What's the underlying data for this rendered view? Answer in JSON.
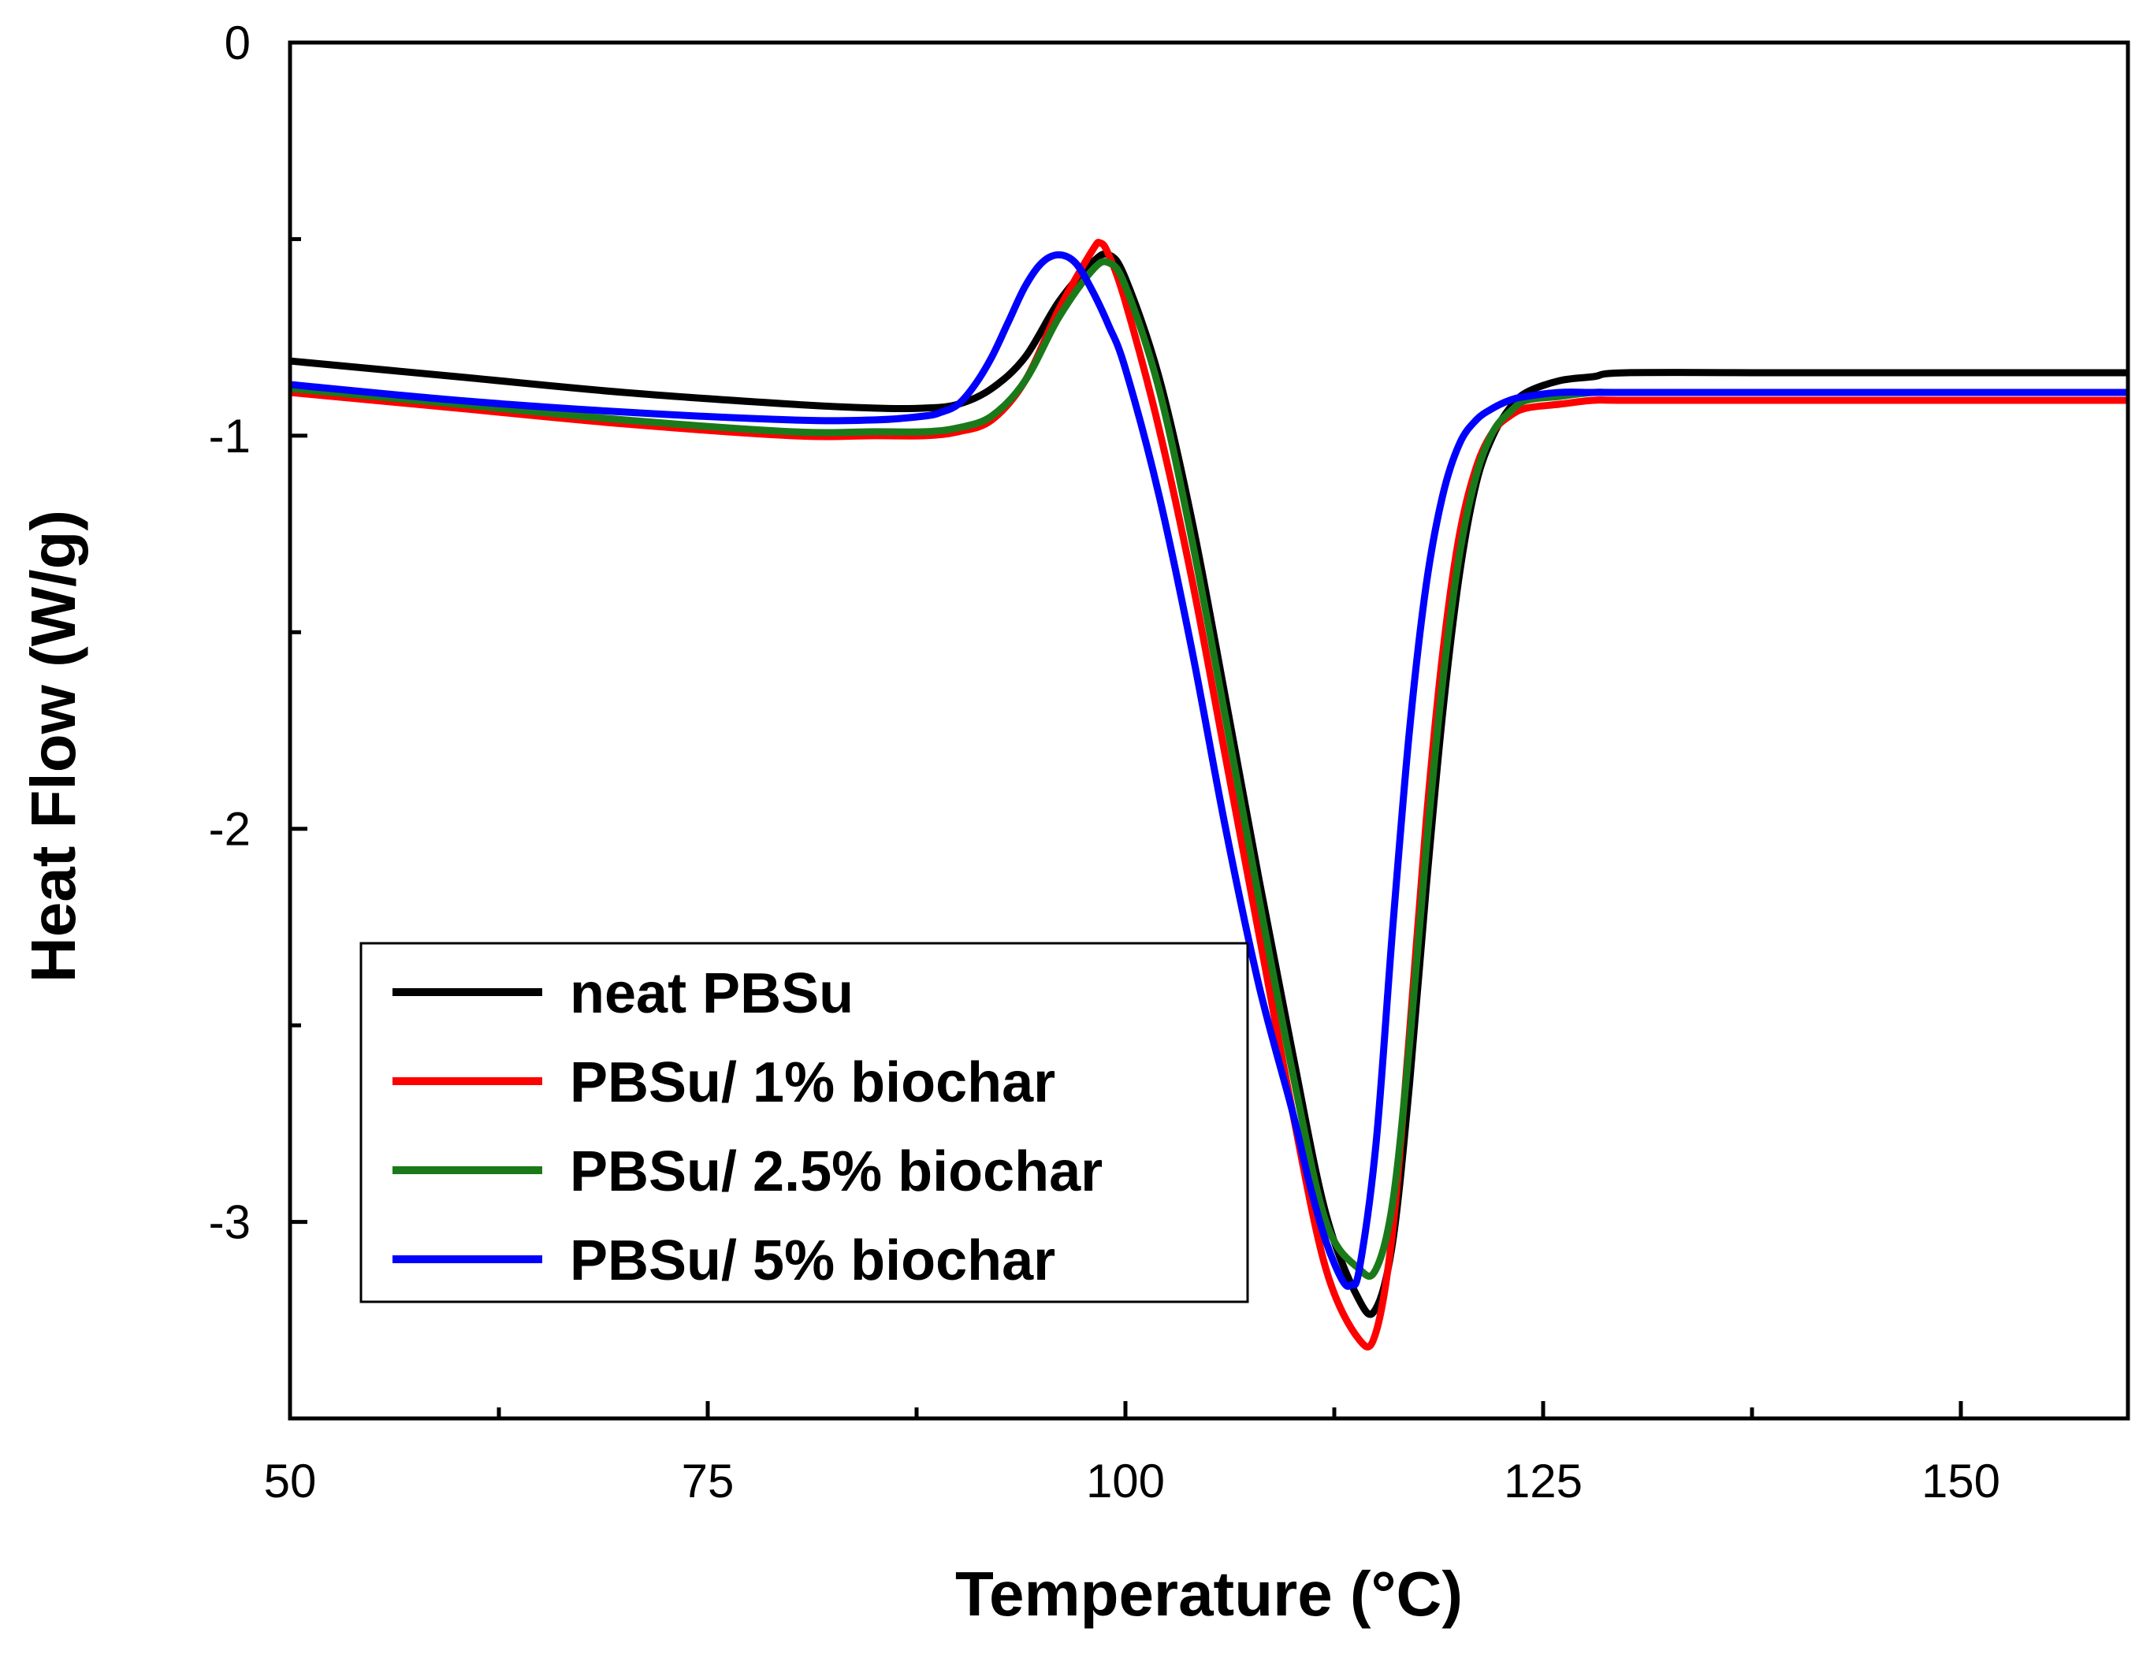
{
  "chart_data": {
    "type": "line",
    "title": "",
    "xlabel": "Temperature (°C)",
    "ylabel": "Heat Flow (W/g)",
    "xlim": [
      50,
      160
    ],
    "ylim": [
      -3.5,
      0
    ],
    "xticks": [
      50,
      75,
      100,
      125,
      150
    ],
    "xtick_labels": [
      "50",
      "75",
      "100",
      "125",
      "150"
    ],
    "yticks": [
      0,
      -1,
      -2,
      -3
    ],
    "ytick_labels": [
      "0",
      "-1",
      "-2",
      "-3"
    ],
    "grid": false,
    "legend_position": "bottom-left",
    "series": [
      {
        "name": "neat PBSu",
        "color": "#000000",
        "x": [
          50,
          60,
          70,
          80,
          85,
          88,
          90,
          92,
          94,
          96,
          98,
          99,
          100,
          102,
          104,
          106,
          108,
          110,
          112,
          114,
          115,
          116,
          117,
          118,
          119,
          120,
          121,
          122,
          123,
          124,
          126,
          128,
          130,
          140,
          150,
          160
        ],
        "y": [
          -0.81,
          -0.85,
          -0.89,
          -0.92,
          -0.93,
          -0.93,
          -0.92,
          -0.88,
          -0.8,
          -0.66,
          -0.56,
          -0.54,
          -0.6,
          -0.85,
          -1.22,
          -1.67,
          -2.13,
          -2.57,
          -2.98,
          -3.2,
          -3.22,
          -3.05,
          -2.65,
          -2.15,
          -1.7,
          -1.35,
          -1.12,
          -1.0,
          -0.93,
          -0.89,
          -0.86,
          -0.85,
          -0.84,
          -0.84,
          -0.84,
          -0.84
        ]
      },
      {
        "name": "PBSu/ 1% biochar",
        "color": "#ff0000",
        "x": [
          50,
          60,
          70,
          80,
          85,
          88,
          90,
          92,
          94,
          96,
          98,
          98.5,
          99,
          100,
          102,
          104,
          106,
          108,
          110,
          112,
          114,
          115,
          116,
          117,
          118,
          119,
          120,
          121,
          122,
          123,
          124,
          126,
          128,
          130,
          140,
          150,
          160
        ],
        "y": [
          -0.89,
          -0.93,
          -0.97,
          -1.0,
          -1.0,
          -1.0,
          -0.99,
          -0.96,
          -0.86,
          -0.68,
          -0.53,
          -0.51,
          -0.54,
          -0.66,
          -0.98,
          -1.37,
          -1.82,
          -2.27,
          -2.72,
          -3.12,
          -3.3,
          -3.28,
          -3.02,
          -2.52,
          -1.98,
          -1.55,
          -1.25,
          -1.08,
          -0.99,
          -0.95,
          -0.93,
          -0.92,
          -0.91,
          -0.91,
          -0.91,
          -0.91,
          -0.91
        ]
      },
      {
        "name": "PBSu/ 2.5% biochar",
        "color": "#1a7a1a",
        "x": [
          50,
          60,
          70,
          80,
          85,
          88,
          90,
          92,
          94,
          96,
          98,
          99,
          100,
          102,
          104,
          106,
          108,
          110,
          112,
          114,
          115,
          116,
          117,
          118,
          119,
          120,
          121,
          122,
          123,
          124,
          126,
          128,
          130,
          140,
          150,
          160
        ],
        "y": [
          -0.88,
          -0.92,
          -0.96,
          -0.99,
          -0.99,
          -0.99,
          -0.98,
          -0.95,
          -0.86,
          -0.7,
          -0.58,
          -0.56,
          -0.62,
          -0.88,
          -1.27,
          -1.72,
          -2.18,
          -2.62,
          -3.0,
          -3.12,
          -3.12,
          -2.95,
          -2.55,
          -2.05,
          -1.62,
          -1.3,
          -1.1,
          -0.99,
          -0.94,
          -0.91,
          -0.9,
          -0.89,
          -0.89,
          -0.89,
          -0.89,
          -0.89
        ]
      },
      {
        "name": "PBSu/ 5% biochar",
        "color": "#0000ff",
        "x": [
          50,
          60,
          70,
          80,
          85,
          88,
          89,
          90,
          91,
          92,
          93,
          94,
          95,
          96,
          97,
          98,
          99,
          100,
          102,
          104,
          106,
          108,
          110,
          111,
          112,
          113,
          113.5,
          114,
          115,
          116,
          117,
          118,
          119,
          120,
          121,
          122,
          123,
          124,
          126,
          128,
          130,
          140,
          150,
          160
        ],
        "y": [
          -0.87,
          -0.91,
          -0.94,
          -0.96,
          -0.96,
          -0.95,
          -0.94,
          -0.92,
          -0.87,
          -0.8,
          -0.71,
          -0.62,
          -0.56,
          -0.54,
          -0.56,
          -0.63,
          -0.72,
          -0.83,
          -1.15,
          -1.55,
          -2.0,
          -2.4,
          -2.72,
          -2.9,
          -3.05,
          -3.15,
          -3.16,
          -3.12,
          -2.8,
          -2.25,
          -1.75,
          -1.38,
          -1.15,
          -1.02,
          -0.96,
          -0.93,
          -0.91,
          -0.9,
          -0.89,
          -0.89,
          -0.89,
          -0.89,
          -0.89,
          -0.89
        ]
      }
    ]
  }
}
